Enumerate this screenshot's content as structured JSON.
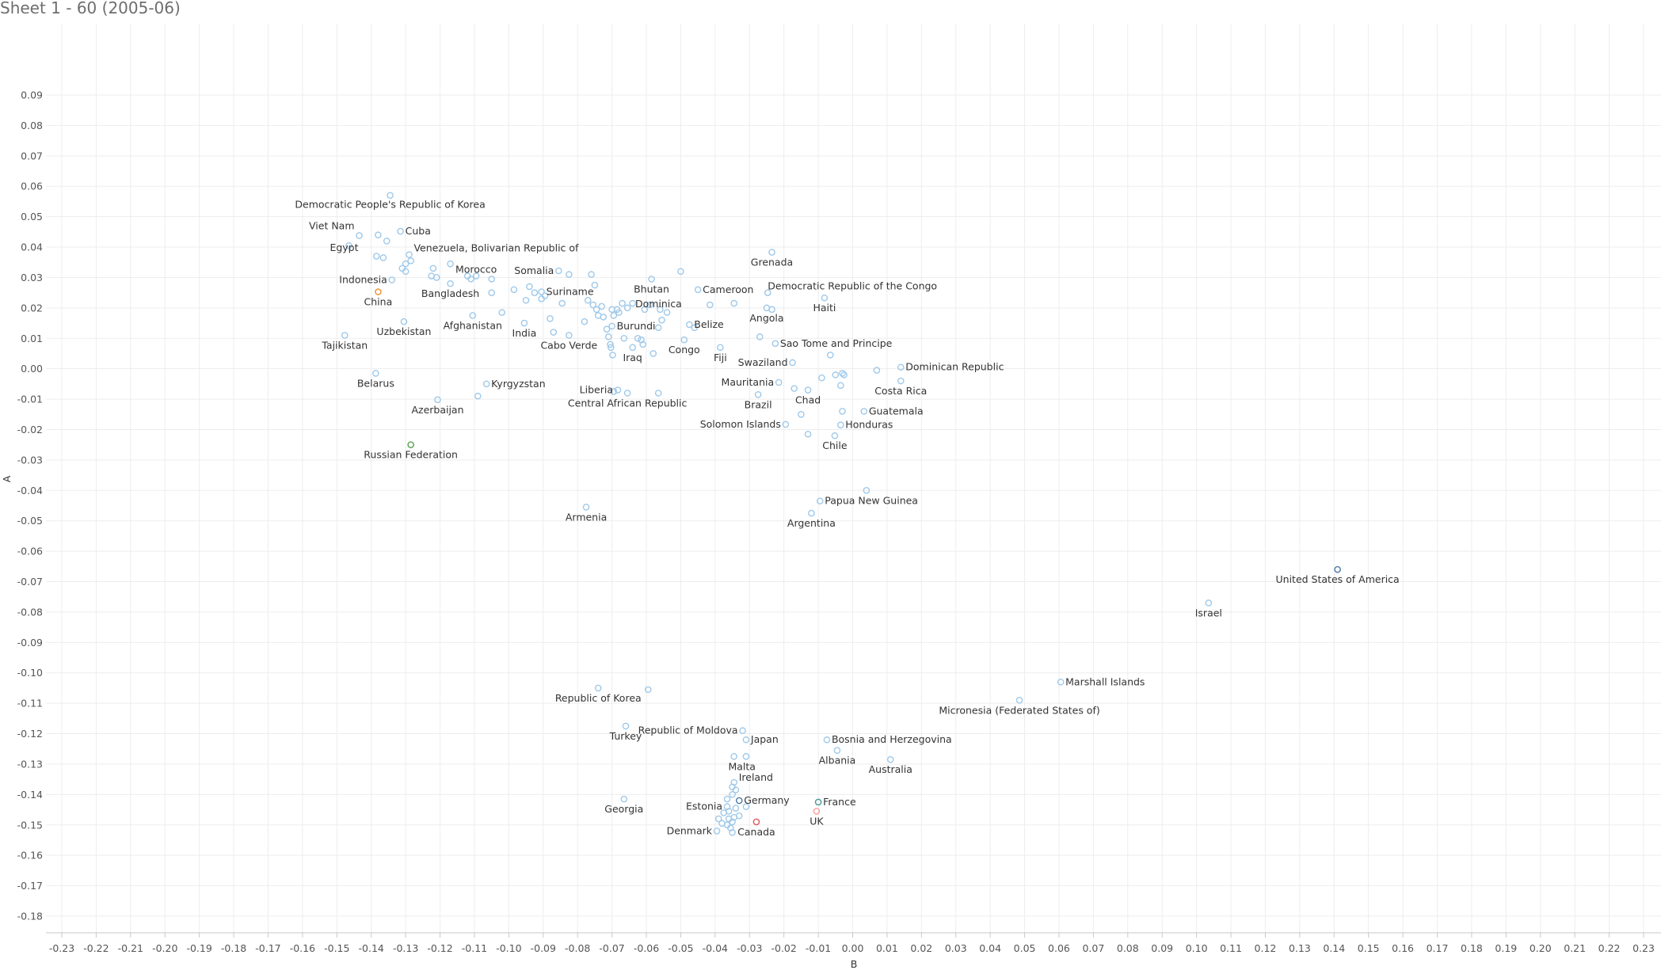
{
  "sheet": {
    "title": "Sheet 1 - 60 (2005-06)"
  },
  "colors": {
    "default": "#9fc9ea",
    "china": "#f28e2b",
    "russia": "#59a14f",
    "usa": "#4e79a7",
    "canada": "#e15759",
    "uk": "#ff9d9a",
    "germany": "#4e79a7",
    "france": "#499894",
    "grid": "#ededed"
  },
  "chart_data": {
    "type": "scatter",
    "title": "Sheet 1 - 60 (2005-06)",
    "xlabel": "B",
    "ylabel": "A",
    "xlim": [
      -0.233,
      0.23
    ],
    "ylim": [
      -0.185,
      0.093
    ],
    "grid": true,
    "x_ticks": [
      "-0.23",
      "-0.22",
      "-0.21",
      "-0.20",
      "-0.19",
      "-0.18",
      "-0.17",
      "-0.16",
      "-0.15",
      "-0.14",
      "-0.13",
      "-0.12",
      "-0.11",
      "-0.10",
      "-0.09",
      "-0.08",
      "-0.07",
      "-0.06",
      "-0.05",
      "-0.04",
      "-0.03",
      "-0.02",
      "-0.01",
      "0.00",
      "0.01",
      "0.02",
      "0.03",
      "0.04",
      "0.05",
      "0.06",
      "0.07",
      "0.08",
      "0.09",
      "0.10",
      "0.11",
      "0.12",
      "0.13",
      "0.14",
      "0.15",
      "0.16",
      "0.17",
      "0.18",
      "0.19",
      "0.20",
      "0.21",
      "0.22",
      "0.23"
    ],
    "y_ticks": [
      "0.09",
      "0.08",
      "0.07",
      "0.06",
      "0.05",
      "0.04",
      "0.03",
      "0.02",
      "0.01",
      "0.00",
      "-0.01",
      "-0.02",
      "-0.03",
      "-0.04",
      "-0.05",
      "-0.06",
      "-0.07",
      "-0.08",
      "-0.09",
      "-0.10",
      "-0.11",
      "-0.12",
      "-0.13",
      "-0.14",
      "-0.15",
      "-0.16",
      "-0.17",
      "-0.18"
    ],
    "points": [
      {
        "label": "Democratic People's Republic of Korea",
        "x": -0.1345,
        "y": 0.057,
        "anchor": "middle",
        "dy": 16
      },
      {
        "label": "Viet Nam",
        "x": -0.1435,
        "y": 0.0438,
        "anchor": "end",
        "dx": -6,
        "dy": -8
      },
      {
        "label": "Cuba",
        "x": -0.1315,
        "y": 0.0452,
        "anchor": "start",
        "dx": 6,
        "dy": 4
      },
      {
        "label": "Egypt",
        "x": -0.1465,
        "y": 0.0405,
        "anchor": "middle",
        "dx": -6,
        "dy": 7
      },
      {
        "label": "Venezuela, Bolivarian Republic of",
        "x": -0.129,
        "y": 0.0375,
        "anchor": "start",
        "dx": 6,
        "dy": -4
      },
      {
        "label": "Indonesia",
        "x": -0.134,
        "y": 0.0292,
        "anchor": "end",
        "dx": -6,
        "dy": 4
      },
      {
        "label": "China",
        "x": -0.138,
        "y": 0.0253,
        "color": "china",
        "anchor": "middle",
        "dy": 17
      },
      {
        "label": "Uzbekistan",
        "x": -0.1305,
        "y": 0.0155,
        "anchor": "middle",
        "dy": 17
      },
      {
        "label": "Tajikistan",
        "x": -0.1477,
        "y": 0.011,
        "anchor": "middle",
        "dy": 17
      },
      {
        "label": "Belarus",
        "x": -0.1387,
        "y": -0.0015,
        "anchor": "middle",
        "dy": 17
      },
      {
        "label": "Azerbaijan",
        "x": -0.1207,
        "y": -0.0102,
        "anchor": "middle",
        "dy": 17
      },
      {
        "label": "Russian Federation",
        "x": -0.1285,
        "y": -0.025,
        "color": "russia",
        "anchor": "middle",
        "dy": 17
      },
      {
        "label": "Bangladesh",
        "x": -0.117,
        "y": 0.028,
        "anchor": "middle",
        "dy": 17
      },
      {
        "label": "Morocco",
        "x": -0.1095,
        "y": 0.0305,
        "anchor": "middle",
        "dy": -4
      },
      {
        "label": "Afghanistan",
        "x": -0.1105,
        "y": 0.0175,
        "anchor": "middle",
        "dy": 17
      },
      {
        "label": "Kyrgyzstan",
        "x": -0.1065,
        "y": -0.005,
        "anchor": "start",
        "dx": 6,
        "dy": 4
      },
      {
        "label": "Somalia",
        "x": -0.0855,
        "y": 0.0322,
        "anchor": "end",
        "dx": -6,
        "dy": 4
      },
      {
        "label": "Suriname",
        "x": -0.0905,
        "y": 0.0253,
        "anchor": "start",
        "dx": 6,
        "dy": 4
      },
      {
        "label": "India",
        "x": -0.0955,
        "y": 0.015,
        "anchor": "middle",
        "dy": 17
      },
      {
        "label": "Cabo Verde",
        "x": -0.0825,
        "y": 0.011,
        "anchor": "middle",
        "dy": 17
      },
      {
        "label": "Burundi",
        "x": -0.07,
        "y": 0.014,
        "anchor": "start",
        "dx": 6,
        "dy": 4
      },
      {
        "label": "Iraq",
        "x": -0.064,
        "y": 0.007,
        "anchor": "middle",
        "dy": 17
      },
      {
        "label": "Bhutan",
        "x": -0.0585,
        "y": 0.0295,
        "anchor": "middle",
        "dy": 17
      },
      {
        "label": "Dominica",
        "x": -0.056,
        "y": 0.0195,
        "anchor": "middle",
        "dx": -2,
        "dy": -3
      },
      {
        "label": "Congo",
        "x": -0.049,
        "y": 0.0095,
        "anchor": "middle",
        "dy": 17
      },
      {
        "label": "Belize",
        "x": -0.0475,
        "y": 0.0145,
        "anchor": "start",
        "dx": 6,
        "dy": 4
      },
      {
        "label": "Fiji",
        "x": -0.0385,
        "y": 0.007,
        "anchor": "middle",
        "dy": 17
      },
      {
        "label": "Cameroon",
        "x": -0.045,
        "y": 0.026,
        "anchor": "start",
        "dx": 6,
        "dy": 4
      },
      {
        "label": "Grenada",
        "x": -0.0235,
        "y": 0.0383,
        "anchor": "middle",
        "dy": 17
      },
      {
        "label": "Democratic Republic of the Congo",
        "x": -0.0247,
        "y": 0.025,
        "anchor": "start",
        "dx": 0,
        "dy": -4
      },
      {
        "label": "Haiti",
        "x": -0.0082,
        "y": 0.0233,
        "anchor": "middle",
        "dy": 17
      },
      {
        "label": "Angola",
        "x": -0.025,
        "y": 0.02,
        "anchor": "middle",
        "dy": 17
      },
      {
        "label": "Sao Tome and Principe",
        "x": -0.0225,
        "y": 0.0083,
        "anchor": "start",
        "dx": 6,
        "dy": 4
      },
      {
        "label": "Swaziland",
        "x": -0.0175,
        "y": 0.002,
        "anchor": "end",
        "dx": -6,
        "dy": 4
      },
      {
        "label": "Dominican Republic",
        "x": 0.014,
        "y": 0.0005,
        "anchor": "start",
        "dx": 6,
        "dy": 4
      },
      {
        "label": "Costa Rica",
        "x": 0.014,
        "y": -0.004,
        "anchor": "middle",
        "dy": 17
      },
      {
        "label": "Mauritania",
        "x": -0.0215,
        "y": -0.0045,
        "anchor": "end",
        "dx": -6,
        "dy": 4
      },
      {
        "label": "Brazil",
        "x": -0.0275,
        "y": -0.0085,
        "anchor": "middle",
        "dy": 17
      },
      {
        "label": "Chad",
        "x": -0.013,
        "y": -0.007,
        "anchor": "middle",
        "dy": 17
      },
      {
        "label": "Guatemala",
        "x": 0.0033,
        "y": -0.014,
        "anchor": "start",
        "dx": 6,
        "dy": 4
      },
      {
        "label": "Honduras",
        "x": -0.0035,
        "y": -0.0185,
        "anchor": "start",
        "dx": 6,
        "dy": 4
      },
      {
        "label": "Solomon Islands",
        "x": -0.0195,
        "y": -0.0183,
        "anchor": "end",
        "dx": -6,
        "dy": 4
      },
      {
        "label": "Chile",
        "x": -0.0052,
        "y": -0.022,
        "anchor": "middle",
        "dy": 17
      },
      {
        "label": "Liberia",
        "x": -0.0683,
        "y": -0.007,
        "anchor": "end",
        "dx": -6,
        "dy": 4
      },
      {
        "label": "Central African Republic",
        "x": -0.0655,
        "y": -0.008,
        "anchor": "middle",
        "dy": 17
      },
      {
        "label": "Armenia",
        "x": -0.0775,
        "y": -0.0455,
        "anchor": "middle",
        "dy": 17
      },
      {
        "label": "Papua New Guinea",
        "x": -0.0095,
        "y": -0.0435,
        "anchor": "start",
        "dx": 6,
        "dy": 4
      },
      {
        "label": "Argentina",
        "x": -0.012,
        "y": -0.0475,
        "anchor": "middle",
        "dy": 17
      },
      {
        "label": "United States of America",
        "x": 0.141,
        "y": -0.066,
        "color": "usa",
        "anchor": "middle",
        "dy": 17
      },
      {
        "label": "Israel",
        "x": 0.1035,
        "y": -0.077,
        "anchor": "middle",
        "dy": 17
      },
      {
        "label": "Marshall Islands",
        "x": 0.0605,
        "y": -0.103,
        "anchor": "start",
        "dx": 6,
        "dy": 4
      },
      {
        "label": "Micronesia (Federated States of)",
        "x": 0.0485,
        "y": -0.109,
        "anchor": "middle",
        "dy": 17
      },
      {
        "label": "Republic of Korea",
        "x": -0.074,
        "y": -0.105,
        "anchor": "middle",
        "dy": 17
      },
      {
        "label": "Turkey",
        "x": -0.066,
        "y": -0.1175,
        "anchor": "middle",
        "dy": 17
      },
      {
        "label": "Republic of Moldova",
        "x": -0.032,
        "y": -0.119,
        "anchor": "end",
        "dx": -6,
        "dy": 4
      },
      {
        "label": "Japan",
        "x": -0.031,
        "y": -0.122,
        "anchor": "start",
        "dx": 6,
        "dy": 4
      },
      {
        "label": "Bosnia and Herzegovina",
        "x": -0.0075,
        "y": -0.122,
        "anchor": "start",
        "dx": 6,
        "dy": 4
      },
      {
        "label": "Albania",
        "x": -0.0045,
        "y": -0.1255,
        "anchor": "middle",
        "dy": 17
      },
      {
        "label": "Australia",
        "x": 0.011,
        "y": -0.1285,
        "anchor": "middle",
        "dy": 17
      },
      {
        "label": "Malta",
        "x": -0.0345,
        "y": -0.1275,
        "anchor": "middle",
        "dx": 10,
        "dy": 17
      },
      {
        "label": "Ireland",
        "x": -0.0345,
        "y": -0.136,
        "anchor": "start",
        "dx": 6,
        "dy": -2
      },
      {
        "label": "Germany",
        "x": -0.033,
        "y": -0.142,
        "color": "germany",
        "anchor": "start",
        "dx": 6,
        "dy": 4
      },
      {
        "label": "France",
        "x": -0.01,
        "y": -0.1425,
        "color": "france",
        "anchor": "start",
        "dx": 6,
        "dy": 4
      },
      {
        "label": "UK",
        "x": -0.0105,
        "y": -0.1455,
        "color": "uk",
        "anchor": "middle",
        "dy": 17
      },
      {
        "label": "Georgia",
        "x": -0.0665,
        "y": -0.1415,
        "anchor": "middle",
        "dy": 17
      },
      {
        "label": "Estonia",
        "x": -0.0365,
        "y": -0.144,
        "anchor": "end",
        "dx": -6,
        "dy": 4
      },
      {
        "label": "Canada",
        "x": -0.028,
        "y": -0.149,
        "color": "canada",
        "anchor": "middle",
        "dy": 17
      },
      {
        "label": "Denmark",
        "x": -0.0395,
        "y": -0.152,
        "anchor": "end",
        "dx": -6,
        "dy": 4
      },
      {
        "x": -0.138,
        "y": 0.044
      },
      {
        "x": -0.1355,
        "y": 0.042
      },
      {
        "x": -0.1385,
        "y": 0.037
      },
      {
        "x": -0.1365,
        "y": 0.0365
      },
      {
        "x": -0.13,
        "y": 0.0345
      },
      {
        "x": -0.131,
        "y": 0.033
      },
      {
        "x": -0.13,
        "y": 0.032
      },
      {
        "x": -0.1285,
        "y": 0.0355
      },
      {
        "x": -0.122,
        "y": 0.033
      },
      {
        "x": -0.1225,
        "y": 0.0305
      },
      {
        "x": -0.121,
        "y": 0.03
      },
      {
        "x": -0.117,
        "y": 0.0345
      },
      {
        "x": -0.112,
        "y": 0.0305
      },
      {
        "x": -0.111,
        "y": 0.0295
      },
      {
        "x": -0.105,
        "y": 0.0295
      },
      {
        "x": -0.105,
        "y": 0.025
      },
      {
        "x": -0.102,
        "y": 0.0185
      },
      {
        "x": -0.0985,
        "y": 0.026
      },
      {
        "x": -0.095,
        "y": 0.0225
      },
      {
        "x": -0.094,
        "y": 0.027
      },
      {
        "x": -0.0925,
        "y": 0.025
      },
      {
        "x": -0.0905,
        "y": 0.023
      },
      {
        "x": -0.0895,
        "y": 0.024
      },
      {
        "x": -0.088,
        "y": 0.0165
      },
      {
        "x": -0.087,
        "y": 0.012
      },
      {
        "x": -0.0845,
        "y": 0.0215
      },
      {
        "x": -0.0825,
        "y": 0.031
      },
      {
        "x": -0.078,
        "y": 0.0155
      },
      {
        "x": -0.077,
        "y": 0.0225
      },
      {
        "x": -0.076,
        "y": 0.031
      },
      {
        "x": -0.0755,
        "y": 0.021
      },
      {
        "x": -0.075,
        "y": 0.0275
      },
      {
        "x": -0.0745,
        "y": 0.0195
      },
      {
        "x": -0.074,
        "y": 0.0175
      },
      {
        "x": -0.073,
        "y": 0.0205
      },
      {
        "x": -0.0725,
        "y": 0.017
      },
      {
        "x": -0.0715,
        "y": 0.013
      },
      {
        "x": -0.071,
        "y": 0.0105
      },
      {
        "x": -0.0705,
        "y": 0.008
      },
      {
        "x": -0.0703,
        "y": 0.007
      },
      {
        "x": -0.0698,
        "y": 0.0045
      },
      {
        "x": -0.07,
        "y": 0.0195
      },
      {
        "x": -0.0695,
        "y": 0.0175
      },
      {
        "x": -0.0685,
        "y": 0.0195
      },
      {
        "x": -0.068,
        "y": 0.0185
      },
      {
        "x": -0.067,
        "y": 0.0215
      },
      {
        "x": -0.0665,
        "y": 0.01
      },
      {
        "x": -0.0655,
        "y": 0.02
      },
      {
        "x": -0.064,
        "y": 0.0215
      },
      {
        "x": -0.0625,
        "y": 0.01
      },
      {
        "x": -0.0615,
        "y": 0.0095
      },
      {
        "x": -0.061,
        "y": 0.008
      },
      {
        "x": -0.0605,
        "y": 0.0195
      },
      {
        "x": -0.059,
        "y": 0.021
      },
      {
        "x": -0.058,
        "y": 0.005
      },
      {
        "x": -0.0565,
        "y": 0.0135
      },
      {
        "x": -0.0555,
        "y": 0.016
      },
      {
        "x": -0.054,
        "y": 0.0185
      },
      {
        "x": -0.05,
        "y": 0.032
      },
      {
        "x": -0.046,
        "y": 0.0135
      },
      {
        "x": -0.0415,
        "y": 0.021
      },
      {
        "x": -0.0345,
        "y": 0.0215
      },
      {
        "x": -0.027,
        "y": 0.0105
      },
      {
        "x": -0.0235,
        "y": 0.0195
      },
      {
        "x": -0.017,
        "y": -0.0065
      },
      {
        "x": -0.015,
        "y": -0.015
      },
      {
        "x": -0.013,
        "y": -0.0215
      },
      {
        "x": -0.009,
        "y": -0.003
      },
      {
        "x": -0.0065,
        "y": 0.0045
      },
      {
        "x": -0.005,
        "y": -0.002
      },
      {
        "x": -0.0035,
        "y": -0.0055
      },
      {
        "x": -0.003,
        "y": -0.0015
      },
      {
        "x": -0.0025,
        "y": -0.002
      },
      {
        "x": -0.003,
        "y": -0.014
      },
      {
        "x": 0.007,
        "y": -0.0005
      },
      {
        "x": 0.004,
        "y": -0.04
      },
      {
        "x": -0.0695,
        "y": -0.0075
      },
      {
        "x": -0.0565,
        "y": -0.008
      },
      {
        "x": -0.109,
        "y": -0.009
      },
      {
        "x": -0.034,
        "y": -0.1385
      },
      {
        "x": -0.035,
        "y": -0.14
      },
      {
        "x": -0.035,
        "y": -0.1375
      },
      {
        "x": -0.0365,
        "y": -0.1415
      },
      {
        "x": -0.0375,
        "y": -0.146
      },
      {
        "x": -0.036,
        "y": -0.1455
      },
      {
        "x": -0.034,
        "y": -0.1445
      },
      {
        "x": -0.033,
        "y": -0.147
      },
      {
        "x": -0.031,
        "y": -0.144
      },
      {
        "x": -0.036,
        "y": -0.148
      },
      {
        "x": -0.035,
        "y": -0.149
      },
      {
        "x": -0.038,
        "y": -0.1495
      },
      {
        "x": -0.0365,
        "y": -0.15
      },
      {
        "x": -0.0355,
        "y": -0.151
      },
      {
        "x": -0.039,
        "y": -0.148
      },
      {
        "x": -0.0345,
        "y": -0.1475
      },
      {
        "x": -0.035,
        "y": -0.1525
      },
      {
        "x": -0.0595,
        "y": -0.1055
      },
      {
        "x": -0.031,
        "y": -0.1275
      }
    ]
  }
}
